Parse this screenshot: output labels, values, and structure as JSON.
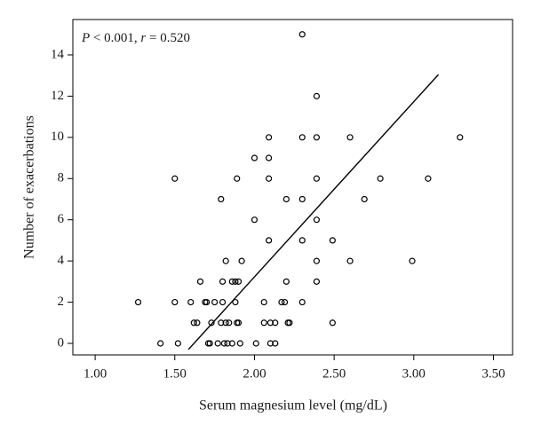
{
  "chart_data": {
    "type": "scatter",
    "xlabel": "Serum magnesium level (mg/dL)",
    "ylabel": "Number of exacerbations",
    "annotation": [
      "P",
      " < 0.001, ",
      "r",
      " = 0.520"
    ],
    "color": "#000000",
    "x": [
      1.27,
      1.41,
      1.5,
      1.5,
      1.52,
      1.6,
      1.62,
      1.64,
      1.66,
      1.69,
      1.7,
      1.71,
      1.72,
      1.73,
      1.75,
      1.77,
      1.79,
      1.79,
      1.8,
      1.8,
      1.81,
      1.82,
      1.82,
      1.83,
      1.84,
      1.86,
      1.86,
      1.88,
      1.88,
      1.89,
      1.89,
      1.9,
      1.9,
      1.91,
      1.92,
      2.0,
      2.0,
      2.01,
      2.06,
      2.06,
      2.09,
      2.09,
      2.09,
      2.09,
      2.1,
      2.1,
      2.13,
      2.13,
      2.17,
      2.19,
      2.2,
      2.2,
      2.21,
      2.22,
      2.3,
      2.3,
      2.3,
      2.3,
      2.3,
      2.39,
      2.39,
      2.39,
      2.39,
      2.39,
      2.39,
      2.49,
      2.49,
      2.6,
      2.6,
      2.69,
      2.79,
      2.99,
      3.09,
      3.29
    ],
    "values": [
      2,
      0,
      8,
      2,
      0,
      2,
      1,
      1,
      3,
      2,
      2,
      0,
      0,
      1,
      2,
      0,
      7,
      1,
      2,
      3,
      0,
      4,
      1,
      0,
      1,
      0,
      3,
      3,
      2,
      1,
      8,
      3,
      1,
      0,
      4,
      9,
      6,
      0,
      1,
      2,
      10,
      9,
      8,
      5,
      1,
      0,
      0,
      1,
      2,
      2,
      7,
      3,
      1,
      1,
      15,
      10,
      7,
      5,
      2,
      12,
      10,
      8,
      6,
      4,
      3,
      5,
      1,
      10,
      4,
      7,
      8,
      4,
      8,
      10
    ],
    "fit_line": {
      "x": [
        1.585,
        3.155
      ],
      "values": [
        -0.3,
        13.05
      ]
    },
    "xlim": [
      0.86,
      3.62
    ],
    "ylim": [
      -0.56,
      15.72
    ],
    "xticks": [
      {
        "value": 1,
        "label": "1.00"
      },
      {
        "value": 1.5,
        "label": "1.50"
      },
      {
        "value": 2,
        "label": "2.00"
      },
      {
        "value": 2.5,
        "label": "2.50"
      },
      {
        "value": 3,
        "label": "3.00"
      },
      {
        "value": 3.5,
        "label": "3.50"
      }
    ],
    "yticks": [
      0,
      2,
      4,
      6,
      8,
      10,
      12,
      14
    ]
  }
}
